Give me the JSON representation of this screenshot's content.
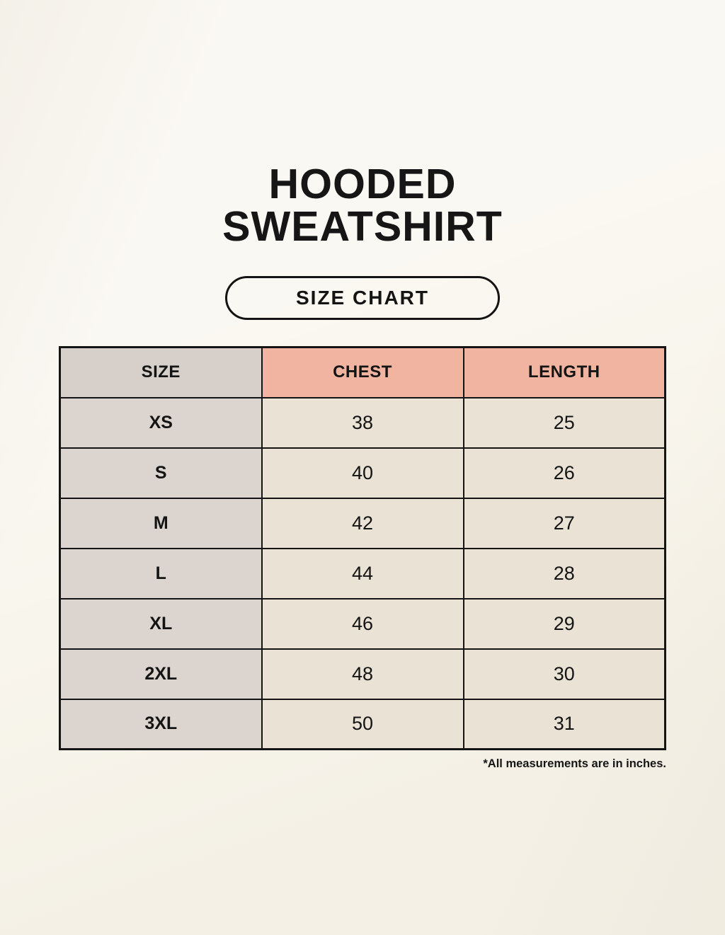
{
  "header": {
    "title_line1": "HOODED",
    "title_line2": "SWEATSHIRT",
    "badge_label": "SIZE CHART"
  },
  "chart_data": {
    "type": "table",
    "title": "HOODED SWEATSHIRT",
    "subtitle": "SIZE CHART",
    "columns": [
      "SIZE",
      "CHEST",
      "LENGTH"
    ],
    "rows": [
      [
        "XS",
        38,
        25
      ],
      [
        "S",
        40,
        26
      ],
      [
        "M",
        42,
        27
      ],
      [
        "L",
        44,
        28
      ],
      [
        "XL",
        46,
        29
      ],
      [
        "2XL",
        48,
        30
      ],
      [
        "3XL",
        50,
        31
      ]
    ],
    "footnote": "*All measurements are in inches."
  },
  "colors": {
    "background": "#f8f5ec",
    "size_column_bg": "#dcd5cf",
    "size_header_bg": "#d7d0ca",
    "header_accent_bg": "#f0b4a1",
    "data_cell_bg": "#e9e2d5",
    "border": "#141414",
    "text": "#141414"
  }
}
